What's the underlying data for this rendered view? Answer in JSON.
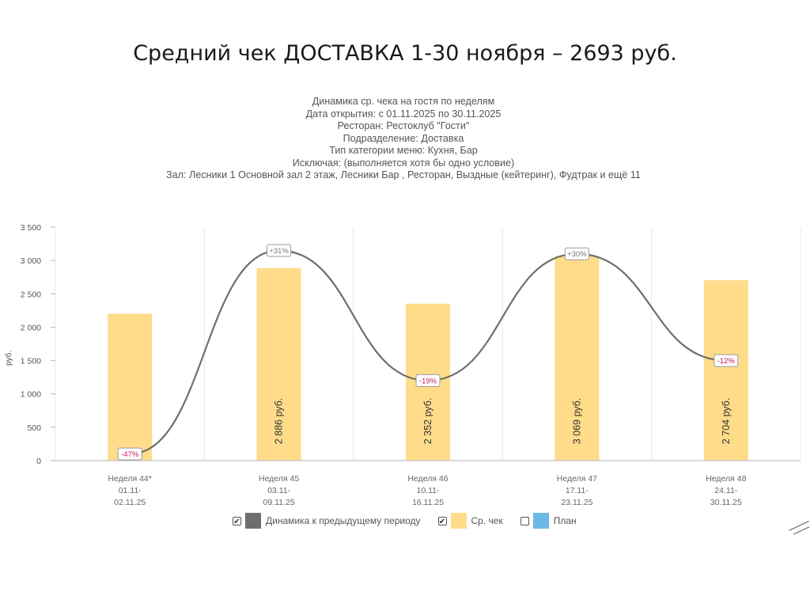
{
  "slide": {
    "title": "Средний чек ДОСТАВКА 1-30 ноября – 2693 руб."
  },
  "report_header": [
    "Динамика ср. чека на гостя по неделям",
    "Дата открытия: с 01.11.2025 по 30.11.2025",
    "Ресторан: Рестоклуб \"Гости\"",
    "Подразделение: Доставка",
    "Тип категории меню: Кухня, Бар",
    "Исключая: (выполняется хотя бы одно условие)",
    "Зал: Лесники 1 Основной зал 2 этаж, Лесники Бар , Ресторан, Выздные (кейтеринг), Фудтрак и ещё 11"
  ],
  "legend": {
    "items": [
      {
        "label": "Динамика к предыдущему периоду",
        "checked": true,
        "color": "#6e6e6e"
      },
      {
        "label": "Ср. чек",
        "checked": true,
        "color": "#ffdc8a"
      },
      {
        "label": "План",
        "checked": false,
        "color": "#6cb8e6"
      }
    ]
  },
  "chart_data": {
    "type": "bar",
    "ylabel": "руб.",
    "ylim": [
      0,
      3500
    ],
    "yticks": [
      0,
      500,
      1000,
      1500,
      2000,
      2500,
      3000,
      3500
    ],
    "ytick_labels": [
      "0",
      "500",
      "1 000",
      "1 500",
      "2 000",
      "2 500",
      "3 000",
      "3 500"
    ],
    "grid": true,
    "categories": [
      [
        "Неделя 44*",
        "01.11-",
        "02.11.25"
      ],
      [
        "Неделя 45",
        "03.11-",
        "09.11.25"
      ],
      [
        "Неделя 46",
        "10.11-",
        "16.11.25"
      ],
      [
        "Неделя 47",
        "17.11-",
        "23.11.25"
      ],
      [
        "Неделя 48",
        "24.11-",
        "30.11.25"
      ]
    ],
    "series": [
      {
        "name": "Ср. чек",
        "type": "bar",
        "color": "#ffdc8a",
        "values": [
          2200,
          2886,
          2352,
          3069,
          2704
        ],
        "value_labels": [
          "",
          "2 886 руб.",
          "2 352 руб.",
          "3 069 руб.",
          "2 704 руб."
        ]
      },
      {
        "name": "Динамика к предыдущему периоду",
        "type": "line",
        "color": "#6e6e6e",
        "values": [
          100,
          3150,
          1200,
          3100,
          1500
        ],
        "point_labels": [
          "-47%",
          "+31%",
          "-19%",
          "+30%",
          "-12%"
        ]
      }
    ]
  }
}
